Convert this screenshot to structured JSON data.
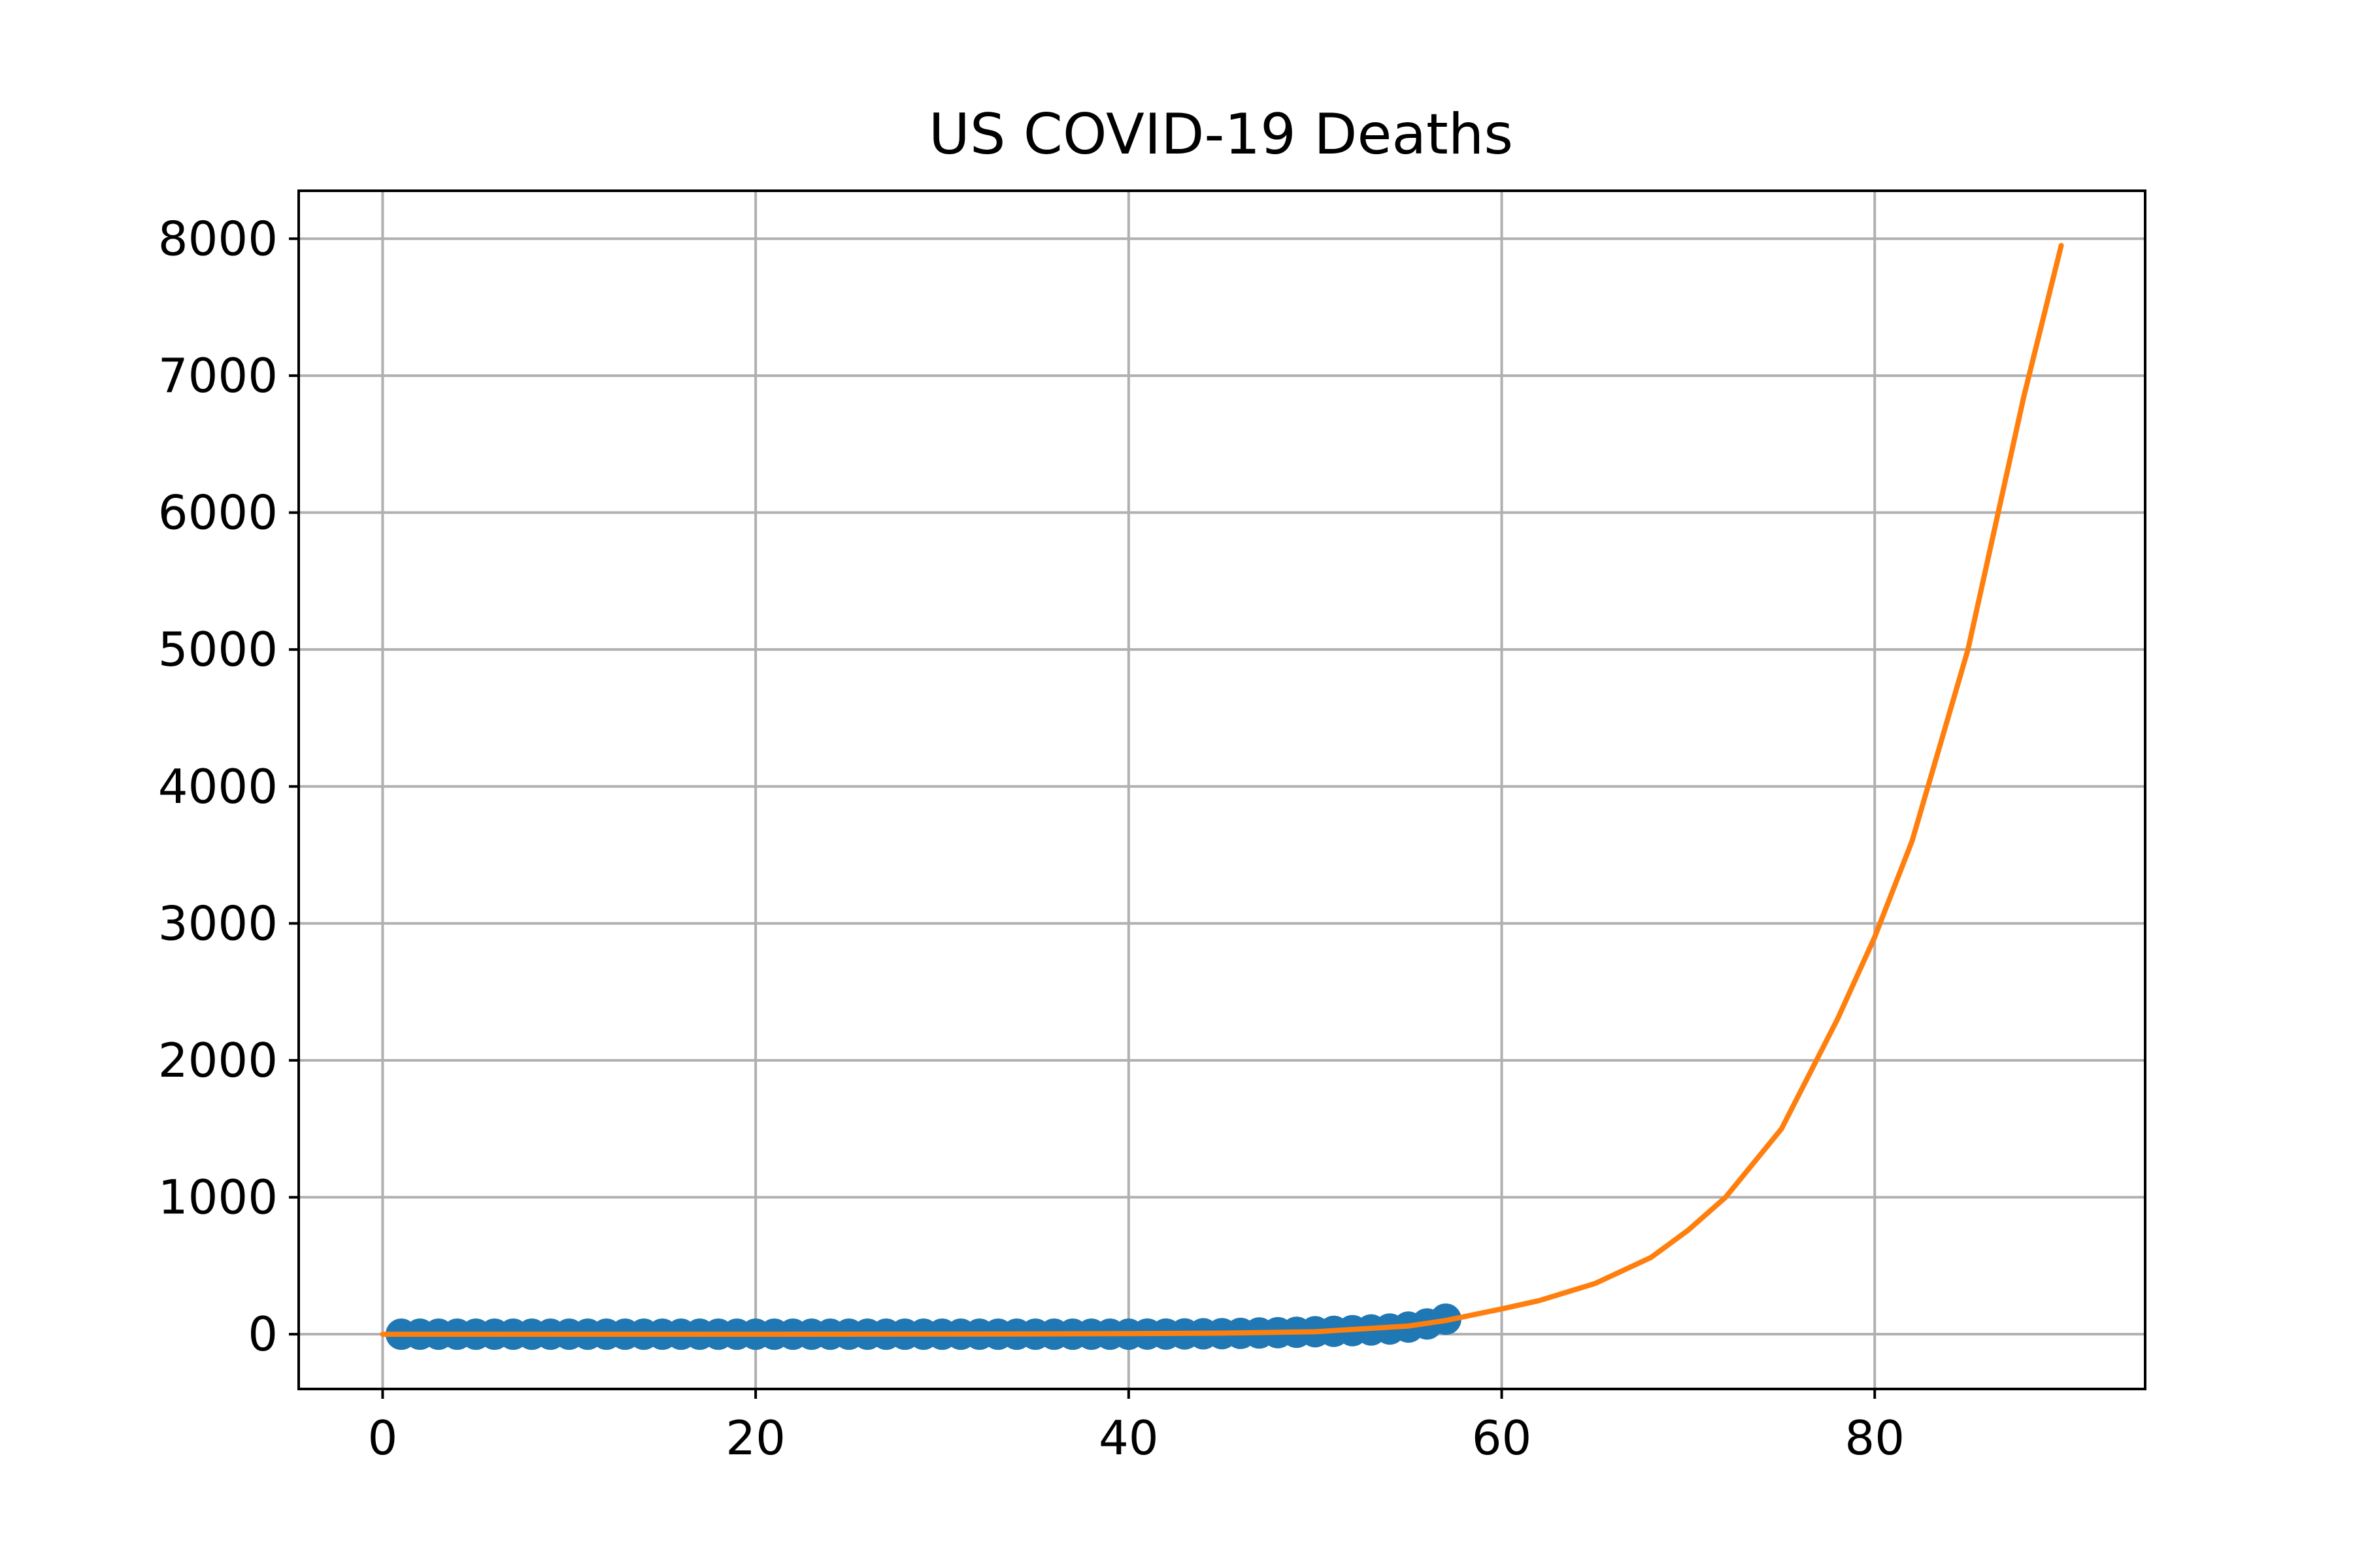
{
  "chart_data": {
    "type": "scatter",
    "title": "US COVID-19 Deaths",
    "xlabel": "",
    "ylabel": "",
    "xlim": [
      -4.5,
      94.5
    ],
    "ylim": [
      -400,
      8350
    ],
    "x_ticks": [
      0,
      20,
      40,
      60,
      80
    ],
    "y_ticks": [
      0,
      1000,
      2000,
      3000,
      4000,
      5000,
      6000,
      7000,
      8000
    ],
    "grid": true,
    "legend": "none",
    "series": [
      {
        "kind": "scatter",
        "color": "#1f77b4",
        "x": [
          1,
          2,
          3,
          4,
          5,
          6,
          7,
          8,
          9,
          10,
          11,
          12,
          13,
          14,
          15,
          16,
          17,
          18,
          19,
          20,
          21,
          22,
          23,
          24,
          25,
          26,
          27,
          28,
          29,
          30,
          31,
          32,
          33,
          34,
          35,
          36,
          37,
          38,
          39,
          40,
          41,
          42,
          43,
          44,
          45,
          46,
          47,
          48,
          49,
          50,
          51,
          52,
          53,
          54,
          55,
          56,
          57
        ],
        "y": [
          0,
          0,
          0,
          0,
          0,
          0,
          0,
          0,
          0,
          0,
          0,
          0,
          0,
          0,
          0,
          0,
          0,
          0,
          0,
          0,
          0,
          0,
          0,
          0,
          0,
          0,
          0,
          0,
          0,
          0,
          0,
          0,
          0,
          0,
          0,
          0,
          0,
          0,
          0,
          0,
          1,
          1,
          2,
          3,
          4,
          6,
          9,
          11,
          14,
          18,
          21,
          26,
          31,
          38,
          52,
          75,
          110
        ]
      },
      {
        "kind": "line",
        "color": "#ff7f0e",
        "x": [
          0,
          10,
          20,
          30,
          35,
          40,
          45,
          50,
          55,
          57,
          60,
          62,
          65,
          68,
          70,
          72,
          75,
          78,
          80,
          82,
          85,
          88,
          90
        ],
        "y": [
          0,
          0,
          0,
          1,
          2,
          4,
          8,
          18,
          60,
          100,
          185,
          245,
          370,
          560,
          760,
          1000,
          1500,
          2300,
          2900,
          3600,
          5000,
          6850,
          7950
        ]
      }
    ]
  }
}
